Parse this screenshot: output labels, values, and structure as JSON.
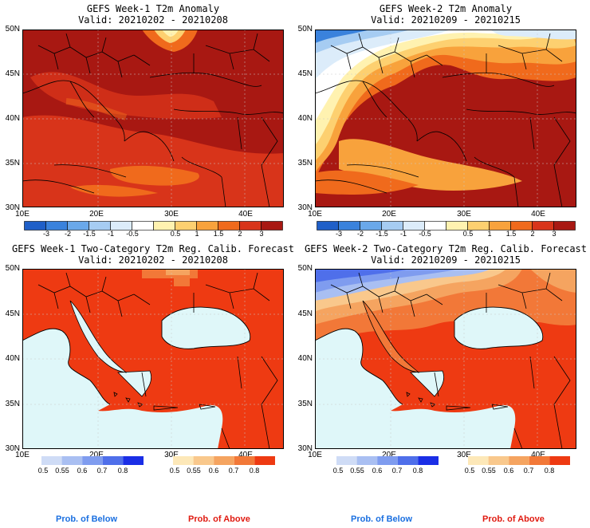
{
  "panels": [
    {
      "title": "GEFS Week-1 T2m Anomaly",
      "valid": "Valid: 20210202 - 20210208"
    },
    {
      "title": "GEFS Week-2 T2m Anomaly",
      "valid": "Valid: 20210209 - 20210215"
    },
    {
      "title": "GEFS Week-1 Two-Category T2m Reg. Calib. Forecast",
      "valid": "Valid: 20210202 - 20210208"
    },
    {
      "title": "GEFS Week-2 Two-Category T2m Reg. Calib. Forecast",
      "valid": "Valid: 20210209 - 20210215"
    }
  ],
  "lat_labels": [
    "50N",
    "45N",
    "40N",
    "35N",
    "30N"
  ],
  "lon_labels": [
    "10E",
    "20E",
    "30E",
    "40E"
  ],
  "anomaly_scale": {
    "ticks": [
      "-3",
      "-2",
      "-1.5",
      "-1",
      "-0.5",
      "0.5",
      "1",
      "1.5",
      "2",
      "3"
    ],
    "colors": [
      "#1f5fc8",
      "#3a82dc",
      "#6aa8ea",
      "#a6ccf2",
      "#dcecfa",
      "#ffffff",
      "#fff2b0",
      "#fdd070",
      "#f8a23c",
      "#f06a1c",
      "#d8341a",
      "#a81812"
    ]
  },
  "prob_scale": {
    "below_ticks": [
      "0.5",
      "0.55",
      "0.6",
      "0.7",
      "0.8"
    ],
    "above_ticks": [
      "0.5",
      "0.55",
      "0.6",
      "0.7",
      "0.8"
    ],
    "below_colors": [
      "#cfdcf6",
      "#a9bff2",
      "#7f9cef",
      "#4f6fea",
      "#1a2ee6"
    ],
    "above_colors": [
      "#fde8b8",
      "#f9c88c",
      "#f5a460",
      "#f27838",
      "#ee3a12"
    ]
  },
  "labels": {
    "below": "Prob. of Below",
    "above": "Prob. of Above"
  },
  "colors": {
    "land_anom_dark": "#a81812",
    "land_anom": "#d8341a",
    "prob_above": "#ee3a12",
    "sea_prob": "#dff7f9",
    "below_label": "#1a6fe0",
    "above_label": "#e01a10"
  }
}
